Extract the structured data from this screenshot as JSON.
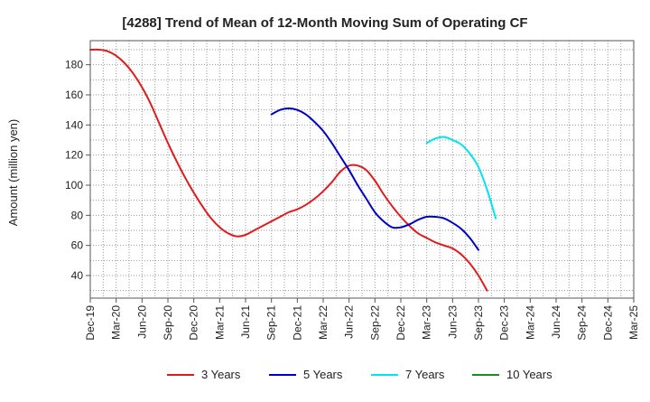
{
  "chart_data": {
    "type": "line",
    "title": "[4288]  Trend of Mean of 12-Month Moving Sum of Operating CF",
    "xlabel": "",
    "ylabel": "Amount (million yen)",
    "ylim": [
      25,
      196
    ],
    "yticks": [
      40,
      60,
      80,
      100,
      120,
      140,
      160,
      180
    ],
    "x_tick_labels": [
      "Dec-19",
      "Mar-20",
      "Jun-20",
      "Sep-20",
      "Dec-20",
      "Mar-21",
      "Jun-21",
      "Sep-21",
      "Dec-21",
      "Mar-22",
      "Jun-22",
      "Sep-22",
      "Dec-22",
      "Mar-23",
      "Jun-23",
      "Sep-23",
      "Dec-23",
      "Mar-24",
      "Jun-24",
      "Sep-24",
      "Dec-24",
      "Mar-25"
    ],
    "grid": true,
    "legend_position": "bottom",
    "series": [
      {
        "name": "3 Years",
        "color": "#e31a1c",
        "values": [
          190,
          190,
          189,
          186,
          181,
          174,
          165,
          154,
          141,
          128,
          116,
          105,
          95,
          86,
          78,
          72,
          68,
          66,
          67,
          70,
          73,
          76,
          79,
          82,
          84,
          87,
          91,
          96,
          102,
          109,
          113,
          113,
          110,
          103,
          94,
          86,
          79,
          73,
          68,
          65,
          62,
          60,
          58,
          54,
          48,
          40,
          30
        ]
      },
      {
        "name": "5 Years",
        "color": "#0000cc",
        "values": [
          null,
          null,
          null,
          null,
          null,
          null,
          null,
          null,
          null,
          null,
          null,
          null,
          null,
          null,
          null,
          null,
          null,
          null,
          null,
          null,
          null,
          147,
          150,
          151,
          150,
          147,
          142,
          136,
          128,
          119,
          110,
          100,
          91,
          82,
          76,
          72,
          72,
          74,
          77,
          79,
          79,
          78,
          75,
          71,
          65,
          57
        ]
      },
      {
        "name": "7 Years",
        "color": "#00e5ee",
        "values": [
          null,
          null,
          null,
          null,
          null,
          null,
          null,
          null,
          null,
          null,
          null,
          null,
          null,
          null,
          null,
          null,
          null,
          null,
          null,
          null,
          null,
          null,
          null,
          null,
          null,
          null,
          null,
          null,
          null,
          null,
          null,
          null,
          null,
          null,
          null,
          null,
          null,
          null,
          null,
          128,
          131,
          132,
          130,
          127,
          121,
          112,
          97,
          78
        ]
      },
      {
        "name": "10 Years",
        "color": "#1a8f1a",
        "values": []
      }
    ]
  }
}
